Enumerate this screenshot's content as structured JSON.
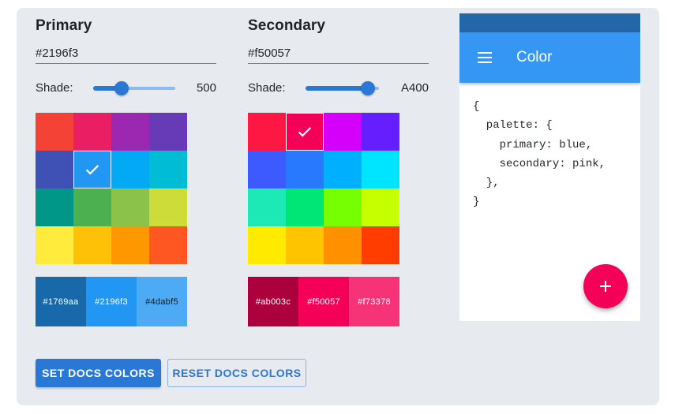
{
  "primary": {
    "title": "Primary",
    "hex_value": "#2196f3",
    "shade_label": "Shade:",
    "shade_value": "500",
    "slider_percent": 35,
    "selected_index": 5,
    "colors": [
      "#f44336",
      "#e91e63",
      "#9c27b0",
      "#673ab7",
      "#3f51b5",
      "#2196f3",
      "#03a9f4",
      "#00bcd4",
      "#009688",
      "#4caf50",
      "#8bc34a",
      "#cddc39",
      "#ffeb3b",
      "#ffc107",
      "#ff9800",
      "#ff5722"
    ],
    "swatches": [
      {
        "label": "#1769aa",
        "bg": "#1769aa",
        "fg": "#ffffff"
      },
      {
        "label": "#2196f3",
        "bg": "#2196f3",
        "fg": "#ffffff"
      },
      {
        "label": "#4dabf5",
        "bg": "#4dabf5",
        "fg": "#1a1a1a"
      }
    ]
  },
  "secondary": {
    "title": "Secondary",
    "hex_value": "#f50057",
    "shade_label": "Shade:",
    "shade_value": "A400",
    "slider_percent": 85,
    "selected_index": 1,
    "colors": [
      "#ff1744",
      "#f50057",
      "#d500f9",
      "#651fff",
      "#3d5afe",
      "#2979ff",
      "#00b0ff",
      "#00e5ff",
      "#1de9b6",
      "#00e676",
      "#76ff03",
      "#c6ff00",
      "#ffea00",
      "#ffc400",
      "#ff9100",
      "#ff3d00"
    ],
    "swatches": [
      {
        "label": "#ab003c",
        "bg": "#ab003c",
        "fg": "#ffffff"
      },
      {
        "label": "#f50057",
        "bg": "#f50057",
        "fg": "#ffffff"
      },
      {
        "label": "#f73378",
        "bg": "#f73378",
        "fg": "#ffffff"
      }
    ]
  },
  "buttons": {
    "set_label": "SET DOCS COLORS",
    "reset_label": "RESET DOCS COLORS"
  },
  "preview": {
    "appbar_title": "Color",
    "menu_icon": "hamburger-menu-icon",
    "fab_icon": "add-icon",
    "code": "{\n  palette: {\n    primary: blue,\n    secondary: pink,\n  },\n}"
  },
  "theme": {
    "panel_bg": "#e7eaef",
    "accent": "#2a78d6",
    "statusbar": "#2367a8",
    "appbar": "#3596f3",
    "fab": "#f50057"
  }
}
